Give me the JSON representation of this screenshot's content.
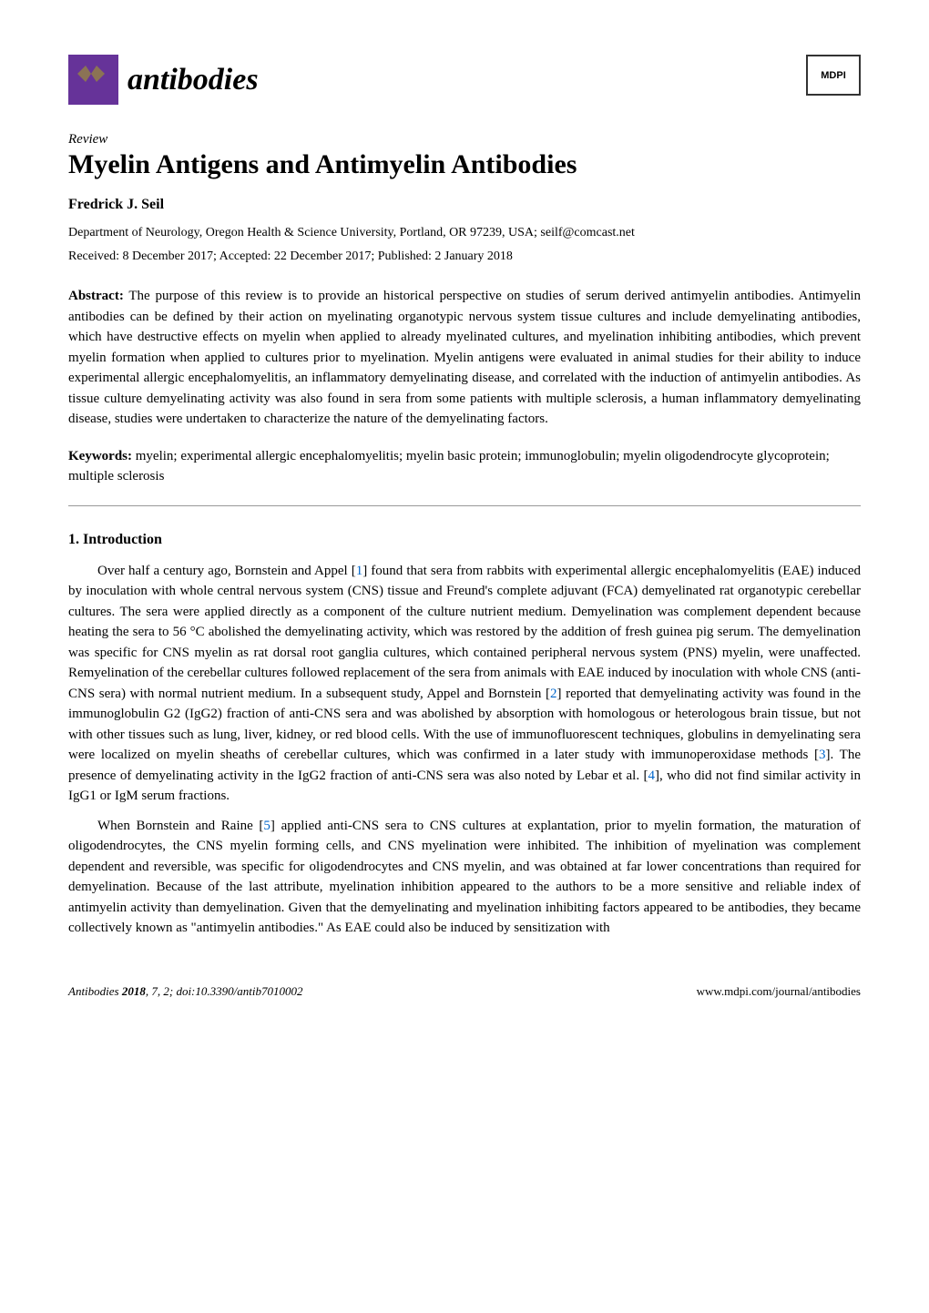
{
  "header": {
    "journal_name": "antibodies",
    "publisher_logo": "MDPI"
  },
  "article": {
    "type": "Review",
    "title": "Myelin Antigens and Antimyelin Antibodies",
    "author": "Fredrick J. Seil",
    "affiliation": "Department of Neurology, Oregon Health & Science University, Portland, OR 97239, USA; seilf@comcast.net",
    "dates": "Received: 8 December 2017; Accepted: 22 December 2017; Published: 2 January 2018"
  },
  "abstract": {
    "label": "Abstract:",
    "text": "The purpose of this review is to provide an historical perspective on studies of serum derived antimyelin antibodies. Antimyelin antibodies can be defined by their action on myelinating organotypic nervous system tissue cultures and include demyelinating antibodies, which have destructive effects on myelin when applied to already myelinated cultures, and myelination inhibiting antibodies, which prevent myelin formation when applied to cultures prior to myelination. Myelin antigens were evaluated in animal studies for their ability to induce experimental allergic encephalomyelitis, an inflammatory demyelinating disease, and correlated with the induction of antimyelin antibodies. As tissue culture demyelinating activity was also found in sera from some patients with multiple sclerosis, a human inflammatory demyelinating disease, studies were undertaken to characterize the nature of the demyelinating factors."
  },
  "keywords": {
    "label": "Keywords:",
    "text": "myelin; experimental allergic encephalomyelitis; myelin basic protein; immunoglobulin; myelin oligodendrocyte glycoprotein; multiple sclerosis"
  },
  "sections": {
    "intro_heading": "1. Introduction",
    "para1_part1": "Over half a century ago, Bornstein and Appel [",
    "ref1": "1",
    "para1_part2": "] found that sera from rabbits with experimental allergic encephalomyelitis (EAE) induced by inoculation with whole central nervous system (CNS) tissue and Freund's complete adjuvant (FCA) demyelinated rat organotypic cerebellar cultures. The sera were applied directly as a component of the culture nutrient medium. Demyelination was complement dependent because heating the sera to 56 °C abolished the demyelinating activity, which was restored by the addition of fresh guinea pig serum. The demyelination was specific for CNS myelin as rat dorsal root ganglia cultures, which contained peripheral nervous system (PNS) myelin, were unaffected. Remyelination of the cerebellar cultures followed replacement of the sera from animals with EAE induced by inoculation with whole CNS (anti-CNS sera) with normal nutrient medium. In a subsequent study, Appel and Bornstein [",
    "ref2": "2",
    "para1_part3": "] reported that demyelinating activity was found in the immunoglobulin G2 (IgG2) fraction of anti-CNS sera and was abolished by absorption with homologous or heterologous brain tissue, but not with other tissues such as lung, liver, kidney, or red blood cells. With the use of immunofluorescent techniques, globulins in demyelinating sera were localized on myelin sheaths of cerebellar cultures, which was confirmed in a later study with immunoperoxidase methods [",
    "ref3": "3",
    "para1_part4": "]. The presence of demyelinating activity in the IgG2 fraction of anti-CNS sera was also noted by Lebar et al. [",
    "ref4": "4",
    "para1_part5": "], who did not find similar activity in IgG1 or IgM serum fractions.",
    "para2_part1": "When Bornstein and Raine [",
    "ref5": "5",
    "para2_part2": "] applied anti-CNS sera to CNS cultures at explantation, prior to myelin formation, the maturation of oligodendrocytes, the CNS myelin forming cells, and CNS myelination were inhibited. The inhibition of myelination was complement dependent and reversible, was specific for oligodendrocytes and CNS myelin, and was obtained at far lower concentrations than required for demyelination. Because of the last attribute, myelination inhibition appeared to the authors to be a more sensitive and reliable index of antimyelin activity than demyelination. Given that the demyelinating and myelination inhibiting factors appeared to be antibodies, they became collectively known as \"antimyelin antibodies.\" As EAE could also be induced by sensitization with"
  },
  "footer": {
    "journal": "Antibodies",
    "year": "2018",
    "volume": "7",
    "issue_doi": ", 2; doi:10.3390/antib7010002",
    "url": "www.mdpi.com/journal/antibodies"
  },
  "colors": {
    "text": "#000000",
    "link": "#0066cc",
    "logo_bg": "#663399",
    "divider": "#999999",
    "background": "#ffffff"
  }
}
